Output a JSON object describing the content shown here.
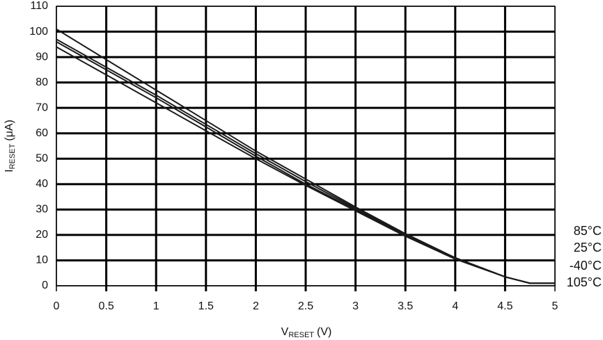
{
  "chart_data": {
    "type": "line",
    "xlabel": {
      "symbol": "V",
      "subscript": "RESET",
      "unit": "(V)"
    },
    "ylabel": {
      "symbol": "I",
      "subscript": "RESET",
      "unit": "(μA)"
    },
    "x": [
      0,
      0.5,
      1,
      1.5,
      2,
      2.5,
      3,
      3.5,
      4,
      4.5,
      4.75,
      5
    ],
    "series": [
      {
        "name": "85°C",
        "color": "#1a1a1a",
        "values": [
          101,
          89,
          77,
          65,
          53,
          42,
          31,
          20.5,
          11,
          3.5,
          1,
          1
        ]
      },
      {
        "name": "25°C",
        "color": "#1a1a1a",
        "values": [
          97,
          86,
          75,
          63.5,
          52,
          41,
          30.5,
          20,
          11,
          3.5,
          1,
          1
        ]
      },
      {
        "name": "-40°C",
        "color": "#1a1a1a",
        "values": [
          96,
          85,
          74,
          62.5,
          51,
          40,
          30,
          20,
          11,
          3.5,
          1,
          1
        ]
      },
      {
        "name": "105°C",
        "color": "#1a1a1a",
        "values": [
          94,
          83,
          72,
          61,
          50,
          39.5,
          29.5,
          19.5,
          10.5,
          3.5,
          1,
          1
        ]
      }
    ],
    "xlim": [
      0,
      5
    ],
    "xticks": [
      0,
      0.5,
      1,
      1.5,
      2,
      2.5,
      3,
      3.5,
      4,
      4.5,
      5
    ],
    "ylim": [
      0,
      110
    ],
    "yticks": [
      0,
      10,
      20,
      30,
      40,
      50,
      60,
      70,
      80,
      90,
      100,
      110
    ],
    "grid": true
  }
}
